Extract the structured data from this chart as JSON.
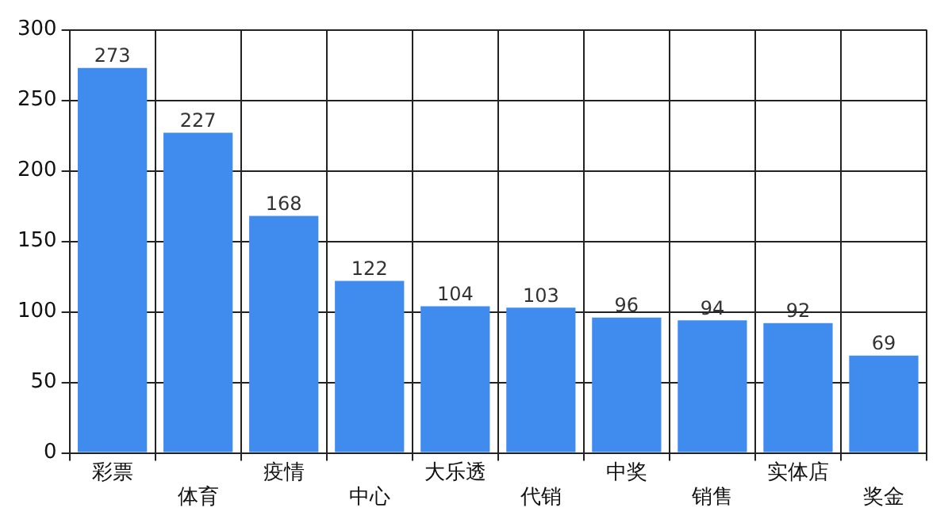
{
  "chart_data": {
    "type": "bar",
    "categories": [
      "彩票",
      "体育",
      "疫情",
      "中心",
      "大乐透",
      "代销",
      "中奖",
      "销售",
      "实体店",
      "奖金"
    ],
    "values": [
      273,
      227,
      168,
      122,
      104,
      103,
      96,
      94,
      92,
      69
    ],
    "color": "#3f8cee",
    "ylim": [
      0,
      300
    ],
    "yticks": [
      0,
      50,
      100,
      150,
      200,
      250,
      300
    ],
    "grid": true,
    "data_labels": true
  }
}
